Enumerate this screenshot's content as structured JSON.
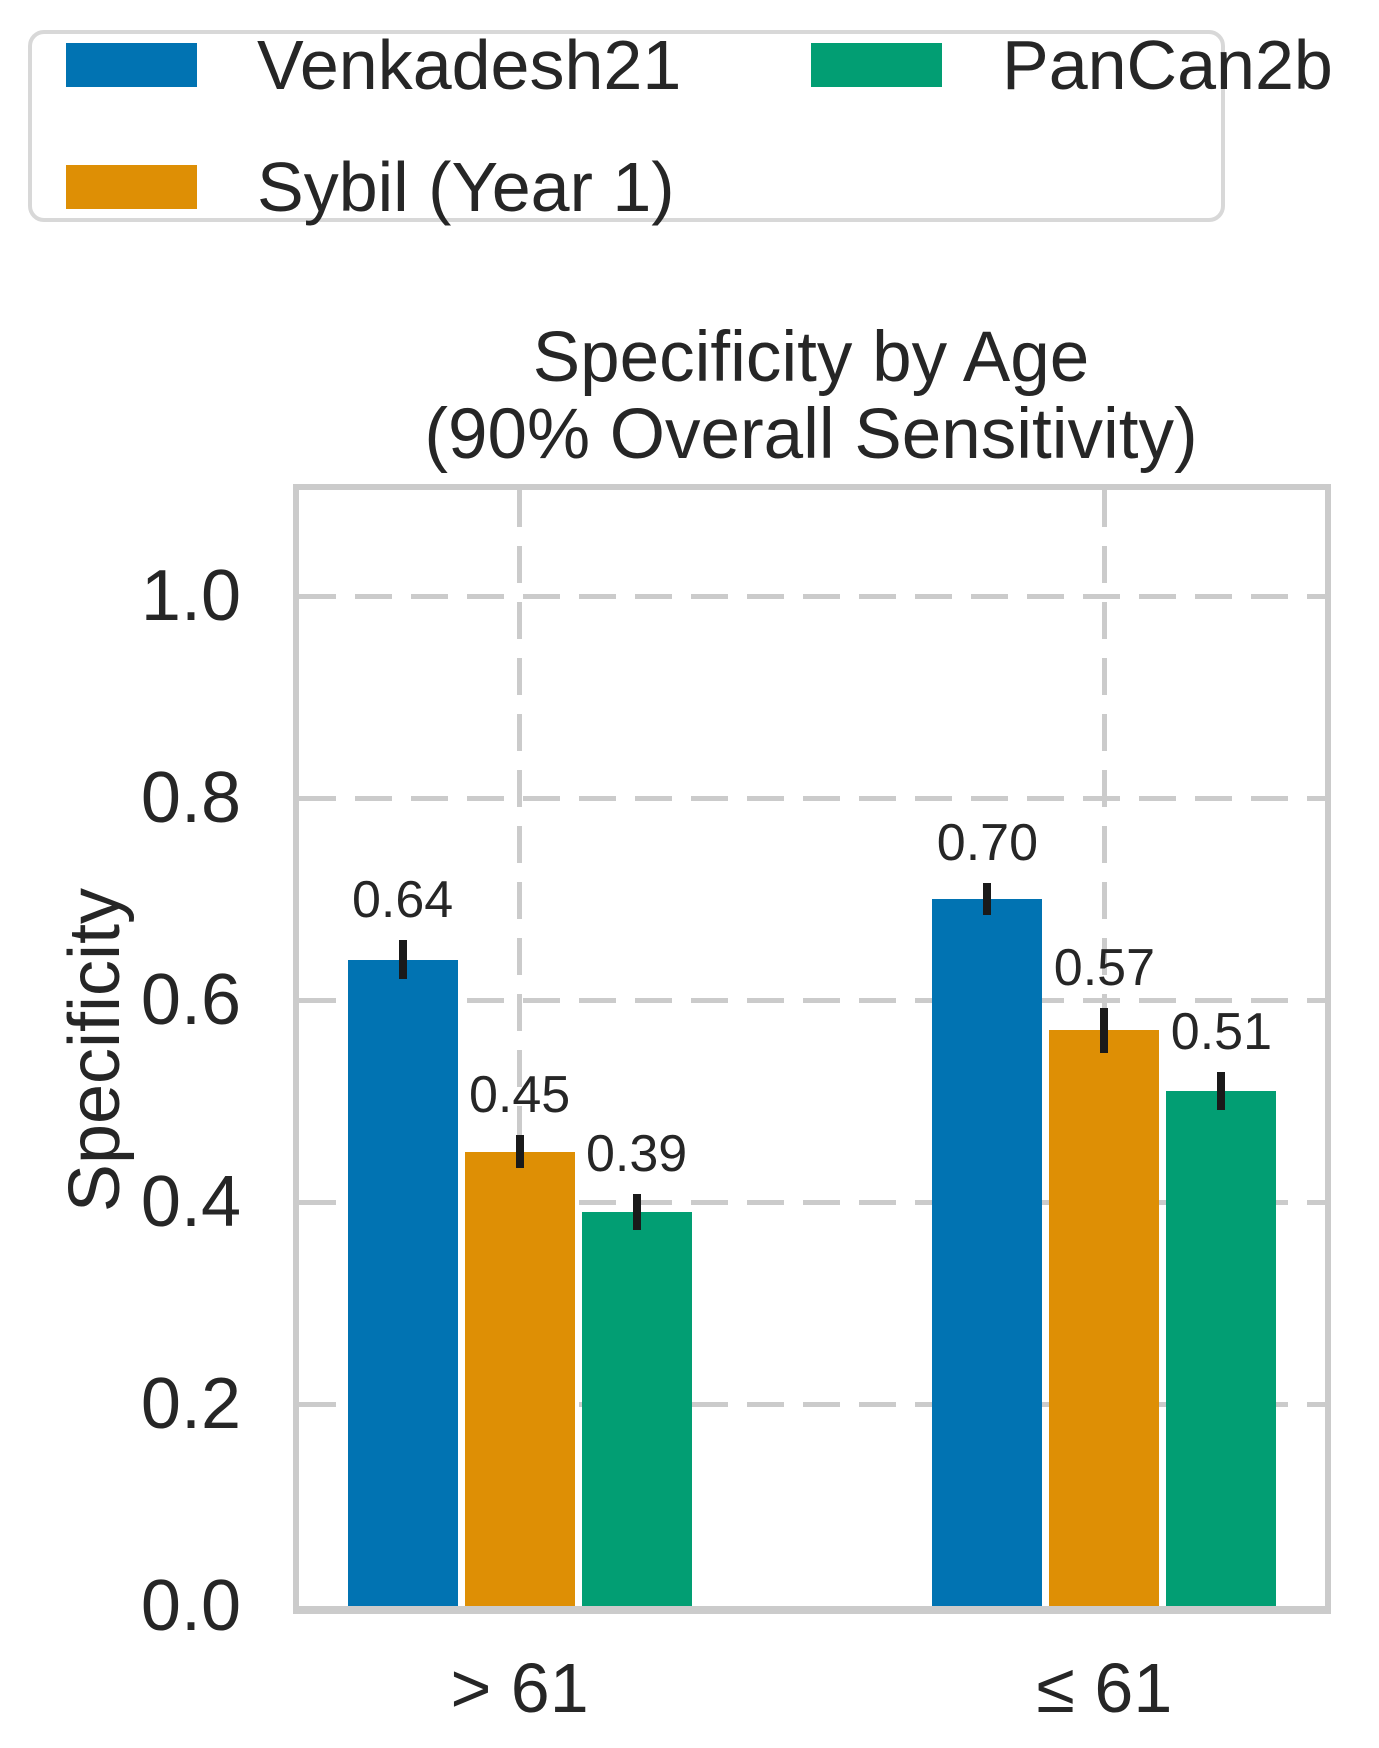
{
  "title": {
    "line1": "Specificity by Age",
    "line2": "(90% Overall Sensitivity)"
  },
  "axes": {
    "ylabel": "Specificity",
    "ytick_labels": [
      "1.0",
      "0.8",
      "0.6",
      "0.4",
      "0.2",
      "0.0"
    ],
    "ytick_values": [
      1.0,
      0.8,
      0.6,
      0.4,
      0.2,
      0.0
    ],
    "xtick_labels": [
      "> 61",
      "≤ 61"
    ]
  },
  "chart_data": {
    "type": "bar",
    "title": "Specificity by Age (90% Overall Sensitivity)",
    "categories": [
      "> 61",
      "≤ 61"
    ],
    "series": [
      {
        "name": "Venkadesh21",
        "color": "#0173b2",
        "values": [
          0.64,
          0.7
        ],
        "errors": [
          0.019,
          0.016
        ]
      },
      {
        "name": "Sybil (Year 1)",
        "color": "#de8f05",
        "values": [
          0.45,
          0.57
        ],
        "errors": [
          0.016,
          0.022
        ]
      },
      {
        "name": "PanCan2b",
        "color": "#029e73",
        "values": [
          0.39,
          0.51
        ],
        "errors": [
          0.018,
          0.019
        ]
      }
    ],
    "bar_labels": [
      [
        "0.64",
        "0.45",
        "0.39"
      ],
      [
        "0.70",
        "0.57",
        "0.51"
      ]
    ],
    "xlabel": "",
    "ylabel": "Specificity",
    "ylim": [
      0,
      1.105
    ],
    "yticks": [
      0.0,
      0.2,
      0.4,
      0.6,
      0.8,
      1.0
    ],
    "grid": true,
    "grid_style": "dashed",
    "legend_position": "top-left outside, 2 columns",
    "error_bar_color": "#1a1a1a",
    "grid_color": "#cbcbcb"
  }
}
